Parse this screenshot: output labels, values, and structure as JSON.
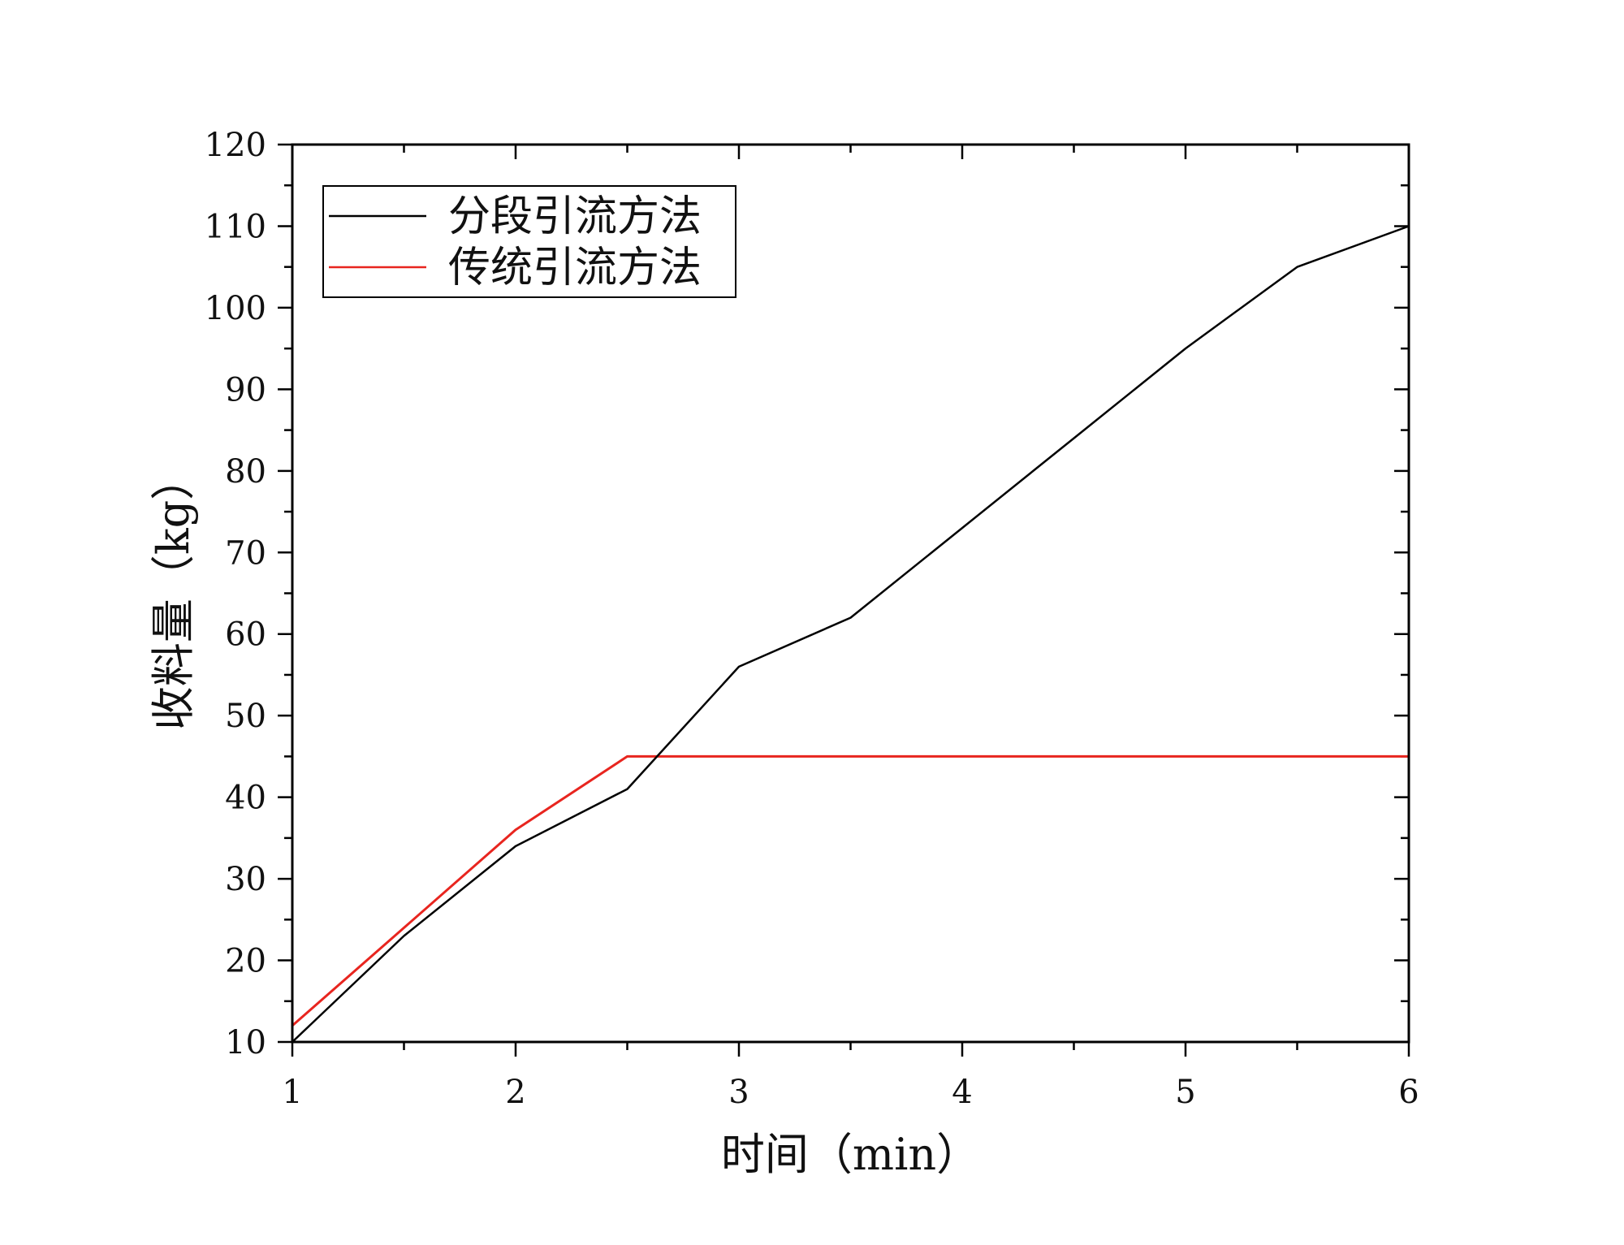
{
  "chart_data": {
    "type": "line",
    "xlabel": "时间（min）",
    "ylabel": "收料量（kg）",
    "xlim": [
      1,
      6
    ],
    "ylim": [
      10,
      120
    ],
    "xticks": [
      1,
      2,
      3,
      4,
      5,
      6
    ],
    "yticks": [
      10,
      20,
      30,
      40,
      50,
      60,
      70,
      80,
      90,
      100,
      110,
      120
    ],
    "legend_position": "top-left",
    "grid": false,
    "series": [
      {
        "name": "分段引流方法",
        "color": "#000000",
        "x": [
          1,
          1.5,
          2,
          2.5,
          3,
          3.5,
          4,
          4.5,
          5,
          5.5,
          6
        ],
        "y": [
          10,
          23,
          34,
          41,
          56,
          62,
          73,
          84,
          95,
          105,
          110
        ]
      },
      {
        "name": "传统引流方法",
        "color": "#e8251f",
        "x": [
          1,
          1.5,
          2,
          2.5,
          3,
          3.5,
          4,
          4.5,
          5,
          5.5,
          6
        ],
        "y": [
          12,
          24,
          36,
          45,
          45,
          45,
          45,
          45,
          45,
          45,
          45
        ]
      }
    ]
  }
}
